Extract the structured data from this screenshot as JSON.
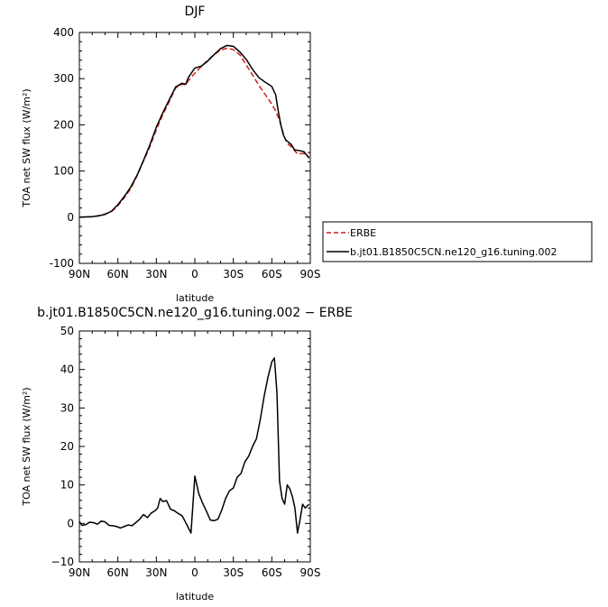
{
  "chart_data": [
    {
      "type": "line",
      "title": "DJF",
      "xlabel": "latitude",
      "ylabel": "TOA net SW flux (W/m²)",
      "xlim": [
        -90,
        90
      ],
      "ylim": [
        -100,
        400
      ],
      "x_ticks": [
        -90,
        -60,
        -30,
        0,
        30,
        60,
        90
      ],
      "x_tick_labels": [
        "90N",
        "60N",
        "30N",
        "0",
        "30S",
        "60S",
        "90S"
      ],
      "y_ticks": [
        -100,
        0,
        100,
        200,
        300,
        400
      ],
      "y_tick_labels": [
        "-100",
        "0",
        "100",
        "200",
        "300",
        "400"
      ],
      "legend_position": "right, outside plot",
      "series": [
        {
          "name": "ERBE",
          "color": "#d11a1a",
          "dash": "dashed",
          "x": [
            -90,
            -80,
            -75,
            -70,
            -65,
            -60,
            -55,
            -50,
            -45,
            -40,
            -35,
            -30,
            -25,
            -20,
            -15,
            -10,
            -7,
            -5,
            0,
            5,
            10,
            15,
            20,
            25,
            30,
            35,
            40,
            45,
            50,
            55,
            60,
            63,
            66,
            68,
            70,
            72,
            75,
            80,
            85,
            89
          ],
          "y": [
            0,
            1,
            3,
            7,
            12,
            25,
            42,
            62,
            90,
            122,
            153,
            190,
            222,
            250,
            280,
            288,
            287,
            296,
            312,
            326,
            340,
            352,
            362,
            366,
            363,
            352,
            330,
            308,
            285,
            265,
            245,
            230,
            210,
            190,
            172,
            160,
            153,
            137,
            138,
            130
          ]
        },
        {
          "name": "b.jt01.B1850C5CN.ne120_g16.tuning.002",
          "color": "#000000",
          "dash": "solid",
          "x": [
            -90,
            -80,
            -75,
            -70,
            -65,
            -60,
            -55,
            -50,
            -45,
            -40,
            -35,
            -30,
            -25,
            -20,
            -15,
            -10,
            -7,
            -5,
            0,
            5,
            10,
            15,
            20,
            25,
            30,
            35,
            40,
            45,
            50,
            55,
            60,
            63,
            65,
            67,
            69,
            71,
            75,
            78,
            80,
            85,
            89
          ],
          "y": [
            0,
            1,
            3,
            6,
            13,
            27,
            45,
            65,
            91,
            123,
            157,
            195,
            226,
            254,
            282,
            290,
            288,
            303,
            323,
            327,
            338,
            352,
            365,
            372,
            370,
            358,
            342,
            320,
            302,
            292,
            283,
            265,
            230,
            200,
            178,
            167,
            158,
            145,
            145,
            142,
            128
          ]
        }
      ]
    },
    {
      "type": "line",
      "title": "b.jt01.B1850C5CN.ne120_g16.tuning.002 − ERBE",
      "xlabel": "latitude",
      "ylabel": "TOA net SW flux (W/m²)",
      "xlim": [
        -90,
        90
      ],
      "ylim": [
        -10,
        50
      ],
      "x_ticks": [
        -90,
        -60,
        -30,
        0,
        30,
        60,
        90
      ],
      "x_tick_labels": [
        "90N",
        "60N",
        "30N",
        "0",
        "30S",
        "60S",
        "90S"
      ],
      "y_ticks": [
        -10,
        0,
        10,
        20,
        30,
        40,
        50
      ],
      "y_tick_labels": [
        "−10",
        "0",
        "10",
        "20",
        "30",
        "40",
        "50"
      ],
      "series": [
        {
          "color": "#000000",
          "dash": "solid",
          "x": [
            -90,
            -88,
            -85,
            -82,
            -79,
            -76,
            -73,
            -70,
            -67,
            -64,
            -61,
            -58,
            -55,
            -52,
            -49,
            -46,
            -43,
            -40,
            -37,
            -34,
            -31,
            -29,
            -27,
            -25,
            -22,
            -19,
            -16,
            -13,
            -10,
            -8,
            -6,
            -3,
            0,
            3,
            6,
            9,
            12,
            15,
            18,
            21,
            24,
            27,
            30,
            33,
            36,
            39,
            42,
            45,
            48,
            51,
            54,
            57,
            60,
            62,
            64,
            66,
            68,
            70,
            72,
            74,
            76,
            78,
            80,
            82,
            84,
            86,
            89
          ],
          "y": [
            0.5,
            -0.5,
            -0.3,
            0.3,
            0.2,
            -0.2,
            0.6,
            0.4,
            -0.5,
            -0.6,
            -0.8,
            -1.2,
            -0.8,
            -0.4,
            -0.6,
            0.2,
            1.1,
            2.3,
            1.5,
            2.7,
            3.3,
            4.0,
            6.5,
            5.7,
            5.9,
            3.7,
            3.3,
            2.6,
            2.0,
            0.8,
            -0.5,
            -2.5,
            12.3,
            7.8,
            5.3,
            3.2,
            0.9,
            0.7,
            1.1,
            3.5,
            6.5,
            8.5,
            9.2,
            12.0,
            13.0,
            16.0,
            17.5,
            20.0,
            22.0,
            27.0,
            33.0,
            38.0,
            42.0,
            43.0,
            34.0,
            11.0,
            6.5,
            5.0,
            10.0,
            9.0,
            7.0,
            4.0,
            -2.5,
            1.0,
            5.0,
            4.0,
            5.0
          ]
        }
      ]
    }
  ]
}
